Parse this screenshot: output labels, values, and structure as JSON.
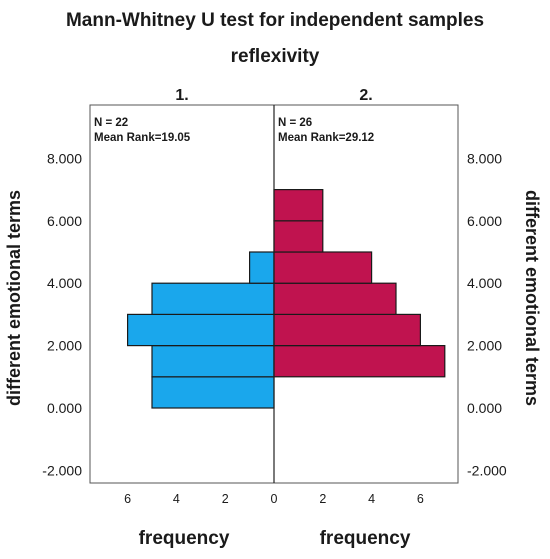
{
  "chart_data": {
    "type": "bar",
    "title": "Mann-Whitney U test for independent samples",
    "subtitle": "reflexivity",
    "ylabel_left": "different emotional terms",
    "ylabel_right": "different emotional terms",
    "xlabel_left": "frequency",
    "xlabel_right": "frequency",
    "y_ticks": [
      "8.000",
      "6.000",
      "4.000",
      "2.000",
      "0.000",
      "-2.000"
    ],
    "y_tick_values": [
      8,
      6,
      4,
      2,
      0,
      -2
    ],
    "ylim": [
      -2.5,
      9.2
    ],
    "x_ticks_left": [
      "6",
      "4",
      "2",
      "0"
    ],
    "x_ticks_right": [
      "2",
      "4",
      "6"
    ],
    "xlim": [
      0,
      8
    ],
    "bin_width": 1,
    "groups": [
      {
        "name": "1.",
        "n_label": "N = 22",
        "mean_rank_label": "Mean Rank=19.05",
        "color": "#1aa7ec",
        "bins": [
          {
            "from": 0,
            "to": 1,
            "count": 5
          },
          {
            "from": 1,
            "to": 2,
            "count": 5
          },
          {
            "from": 2,
            "to": 3,
            "count": 6
          },
          {
            "from": 3,
            "to": 4,
            "count": 5
          },
          {
            "from": 4,
            "to": 5,
            "count": 1
          }
        ]
      },
      {
        "name": "2.",
        "n_label": "N = 26",
        "mean_rank_label": "Mean Rank=29.12",
        "color": "#c0134f",
        "bins": [
          {
            "from": 1,
            "to": 2,
            "count": 7
          },
          {
            "from": 2,
            "to": 3,
            "count": 6
          },
          {
            "from": 3,
            "to": 4,
            "count": 5
          },
          {
            "from": 4,
            "to": 5,
            "count": 4
          },
          {
            "from": 5,
            "to": 6,
            "count": 2
          },
          {
            "from": 6,
            "to": 7,
            "count": 2
          }
        ]
      }
    ]
  }
}
